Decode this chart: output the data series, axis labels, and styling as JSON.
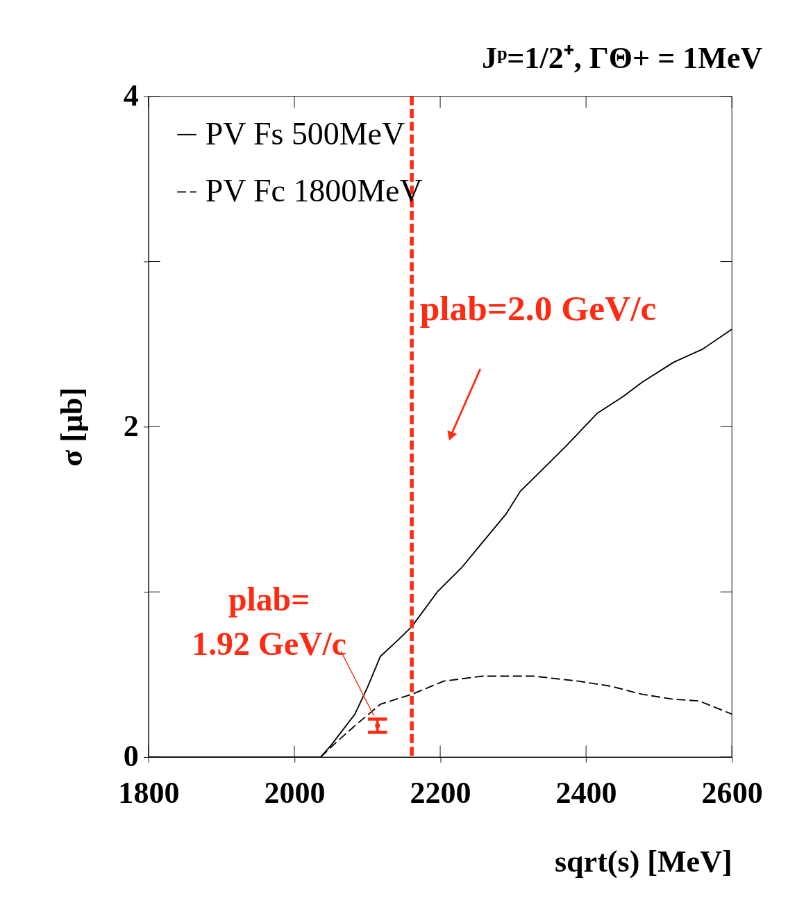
{
  "chart_data": {
    "type": "line",
    "title": "Jᵖ=1/2⁺, ΓΘ+ = 1MeV",
    "xlabel": "sqrt(s) [MeV]",
    "ylabel": "σ [μb]",
    "xlim": [
      1800,
      2600
    ],
    "ylim": [
      0,
      4
    ],
    "xticks": [
      1800,
      2000,
      2200,
      2400,
      2600
    ],
    "yticks": [
      0,
      {
        "value": 1,
        "label": null
      },
      2,
      {
        "value": 3,
        "label": null
      },
      4
    ],
    "grid": false,
    "legend": "top left",
    "marker": "none",
    "series": [
      {
        "name": "PV Fs 500MeV",
        "color": "#000000",
        "line_style": "solid",
        "x": [
          1800,
          1900,
          2000,
          2036,
          2050,
          2083,
          2100,
          2118,
          2140,
          2161,
          2196,
          2230,
          2258,
          2290,
          2310,
          2340,
          2372,
          2415,
          2450,
          2477,
          2520,
          2560,
          2600
        ],
        "values": [
          0.0,
          0.0,
          0.0,
          0.0,
          0.07,
          0.26,
          0.42,
          0.61,
          0.7,
          0.79,
          1.0,
          1.15,
          1.3,
          1.47,
          1.61,
          1.74,
          1.88,
          2.08,
          2.18,
          2.27,
          2.39,
          2.47,
          2.59
        ]
      },
      {
        "name": "PV Fc 1800MeV",
        "color": "#000000",
        "line_style": "dashed",
        "x": [
          2036,
          2060,
          2083,
          2118,
          2161,
          2205,
          2258,
          2300,
          2328,
          2389,
          2433,
          2477,
          2520,
          2555,
          2600
        ],
        "values": [
          0.0,
          0.1,
          0.19,
          0.32,
          0.38,
          0.46,
          0.49,
          0.49,
          0.49,
          0.46,
          0.43,
          0.38,
          0.35,
          0.34,
          0.26
        ]
      },
      {
        "color": "#ff2a12",
        "type": "scatter",
        "x": [
          2114
        ],
        "values": [
          0.19
        ],
        "errors": [
          [
            0.15,
            0.23
          ]
        ]
      }
    ],
    "ref_lines": [
      {
        "axis": "x",
        "value": 2161,
        "color": "#ff2a12",
        "line_style": "dashed"
      }
    ],
    "annotations": [
      {
        "text": "plab=2.0 GeV/c",
        "x": 2165,
        "y": 2.6
      },
      {
        "text": "plab= 1.92 GeV/c",
        "x": 2114,
        "y": 0.19
      }
    ]
  }
}
